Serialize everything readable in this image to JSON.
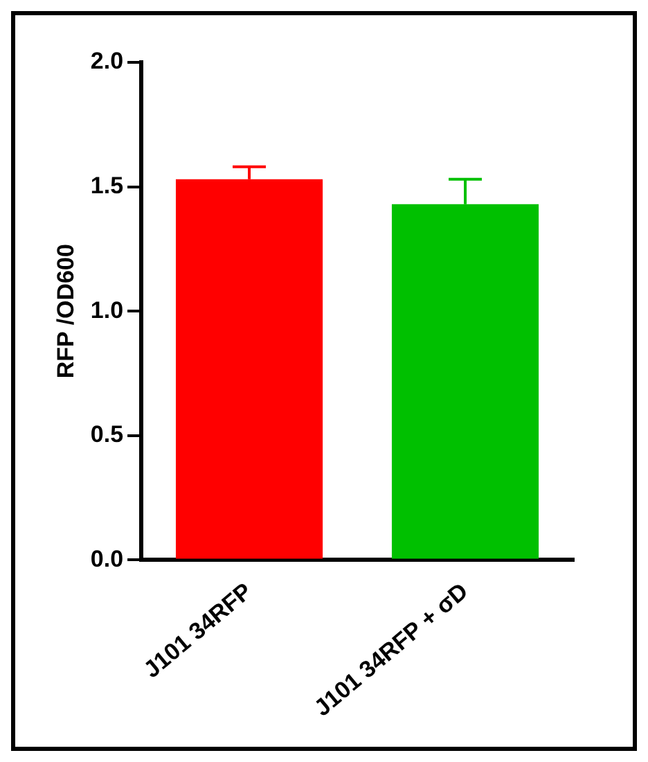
{
  "chart_data": {
    "type": "bar",
    "ylabel": "RFP /OD600",
    "categories": [
      "J101 34RFP",
      "J101 34RFP + σD"
    ],
    "values": [
      1.53,
      1.43
    ],
    "colors": [
      "#ff0000",
      "#00c000"
    ],
    "errors": [
      [
        1.53,
        1.58
      ],
      [
        1.43,
        1.53
      ]
    ],
    "ylim": [
      0,
      2
    ],
    "yticks": [
      {
        "value": 0,
        "label": "0.0"
      },
      0.5,
      {
        "value": 1,
        "label": "1.0"
      },
      1.5,
      {
        "value": 2,
        "label": "2.0"
      }
    ],
    "grid": false,
    "legend": false
  }
}
